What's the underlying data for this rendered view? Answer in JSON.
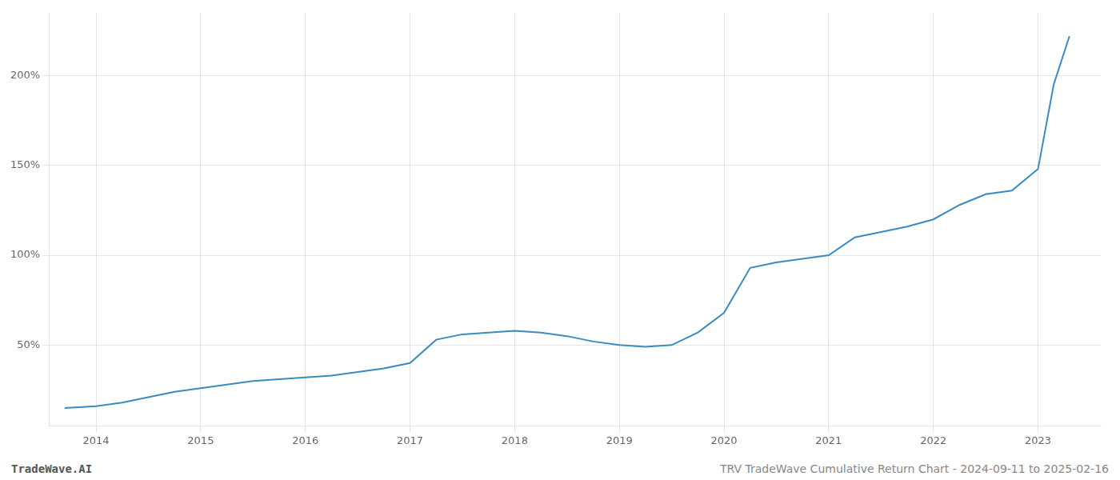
{
  "chart_data": {
    "type": "line",
    "title": "TRV TradeWave Cumulative Return Chart - 2024-09-11 to 2025-02-16",
    "annotations": [
      "TradeWave.AI"
    ],
    "x": [
      2013.7,
      2014.0,
      2014.25,
      2014.5,
      2014.75,
      2015.0,
      2015.25,
      2015.5,
      2015.75,
      2016.0,
      2016.25,
      2016.5,
      2016.75,
      2017.0,
      2017.25,
      2017.5,
      2017.75,
      2018.0,
      2018.25,
      2018.5,
      2018.75,
      2019.0,
      2019.25,
      2019.5,
      2019.75,
      2020.0,
      2020.25,
      2020.5,
      2020.75,
      2021.0,
      2021.25,
      2021.5,
      2021.75,
      2022.0,
      2022.25,
      2022.5,
      2022.75,
      2023.0,
      2023.15,
      2023.3
    ],
    "values": [
      15,
      16,
      18,
      21,
      24,
      26,
      28,
      30,
      31,
      32,
      33,
      35,
      37,
      40,
      53,
      56,
      57,
      58,
      57,
      55,
      52,
      50,
      49,
      50,
      57,
      68,
      93,
      96,
      98,
      100,
      110,
      113,
      116,
      120,
      128,
      134,
      136,
      148,
      195,
      222
    ],
    "color": "#3a8bbf",
    "xlim": [
      2013.55,
      2023.6
    ],
    "xticks": [
      2014,
      2015,
      2016,
      2017,
      2018,
      2019,
      2020,
      2021,
      2022,
      2023
    ],
    "ylim": [
      5,
      235
    ],
    "yticks": [
      {
        "value": 50,
        "label": "50%"
      },
      {
        "value": 100,
        "label": "100%"
      },
      {
        "value": 150,
        "label": "150%"
      },
      {
        "value": 200,
        "label": "200%"
      }
    ],
    "grid": true
  }
}
